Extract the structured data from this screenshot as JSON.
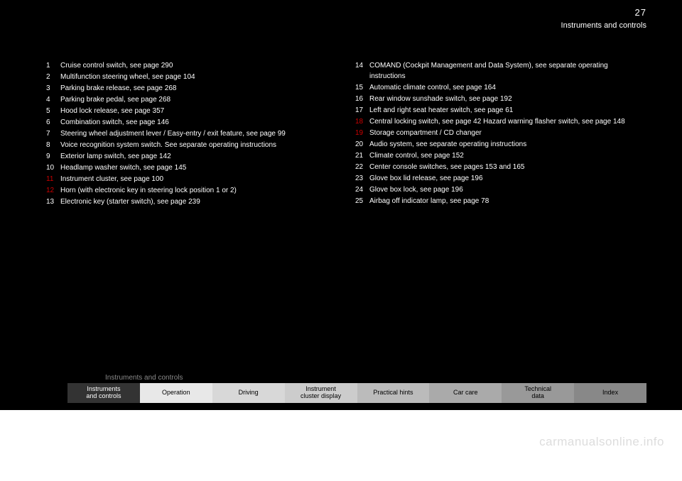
{
  "page_number": "27",
  "page_title": "Instruments and controls",
  "columns": [
    {
      "items": [
        {
          "num": "1",
          "red": false,
          "text": "Cruise control switch, see page 290",
          "page": ""
        },
        {
          "num": "2",
          "red": false,
          "text": "Multifunction steering wheel, see page 104",
          "page": ""
        },
        {
          "num": "3",
          "red": false,
          "text": "Parking brake release, see page 268",
          "page": ""
        },
        {
          "num": "4",
          "red": false,
          "text": "Parking brake pedal, see page 268",
          "page": ""
        },
        {
          "num": "5",
          "red": false,
          "text": "Hood lock release, see page 357",
          "page": ""
        },
        {
          "num": "6",
          "red": false,
          "text": "Combination switch, see page 146",
          "page": ""
        },
        {
          "num": "7",
          "red": false,
          "text": "Steering wheel adjustment lever / Easy-entry / exit feature, see page 99",
          "page": ""
        },
        {
          "num": "8",
          "red": false,
          "text": "Voice recognition system switch. See separate operating instructions",
          "page": ""
        },
        {
          "num": "9",
          "red": false,
          "text": "Exterior lamp switch, see page 142",
          "page": ""
        },
        {
          "num": "10",
          "red": false,
          "text": "Headlamp washer switch, see page 145",
          "page": ""
        },
        {
          "num": "11",
          "red": true,
          "text": "Instrument cluster, see page 100",
          "page": ""
        },
        {
          "num": "12",
          "red": true,
          "text": "Horn (with electronic key in steering lock position 1 or 2)",
          "page": ""
        },
        {
          "num": "13",
          "red": false,
          "text": "Electronic key (starter switch), see page 239",
          "page": ""
        }
      ]
    },
    {
      "items": [
        {
          "num": "14",
          "red": false,
          "text": "COMAND (Cockpit Management and Data System), see separate operating instructions",
          "page": ""
        },
        {
          "num": "15",
          "red": false,
          "text": "Automatic climate control, see page 164",
          "page": ""
        },
        {
          "num": "16",
          "red": false,
          "text": "Rear window sunshade switch, see page 192",
          "page": ""
        },
        {
          "num": "17",
          "red": false,
          "text": "Left and right seat heater switch, see page 61",
          "page": ""
        },
        {
          "num": "18",
          "red": true,
          "text": "Central locking switch, see page 42 Hazard warning flasher switch, see page 148",
          "page": ""
        },
        {
          "num": "19",
          "red": true,
          "text": "Storage compartment / CD changer",
          "page": ""
        },
        {
          "num": "20",
          "red": false,
          "text": "Audio system, see separate operating instructions",
          "page": ""
        },
        {
          "num": "21",
          "red": false,
          "text": "Climate control, see page 152",
          "page": ""
        },
        {
          "num": "22",
          "red": false,
          "text": "Center console switches, see pages 153 and 165",
          "page": ""
        },
        {
          "num": "23",
          "red": false,
          "text": "Glove box lid release, see page 196",
          "page": ""
        },
        {
          "num": "24",
          "red": false,
          "text": "Glove box lock, see page 196",
          "page": ""
        },
        {
          "num": "25",
          "red": false,
          "text": "Airbag off indicator lamp, see page 78",
          "page": ""
        }
      ]
    }
  ],
  "section_label": "Instruments and controls",
  "nav_tabs": [
    {
      "label": "Instruments\nand controls",
      "active": true
    },
    {
      "label": "Operation",
      "active": false
    },
    {
      "label": "Driving",
      "active": false
    },
    {
      "label": "Instrument\ncluster display",
      "active": false
    },
    {
      "label": "Practical hints",
      "active": false
    },
    {
      "label": "Car care",
      "active": false
    },
    {
      "label": "Technical\ndata",
      "active": false
    },
    {
      "label": "Index",
      "active": false
    }
  ],
  "watermark": "carmanualsonline.info"
}
